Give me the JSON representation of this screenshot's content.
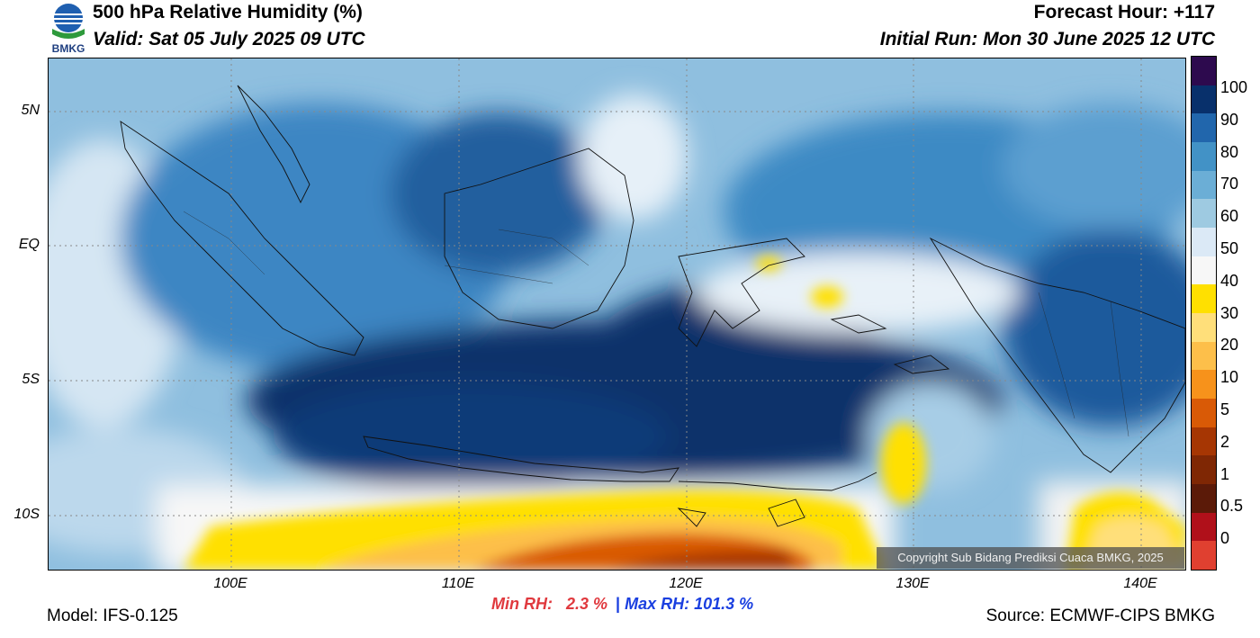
{
  "header": {
    "title": "500 hPa Relative Humidity (%)",
    "valid": "Valid: Sat 05 July 2025 09 UTC",
    "forecast_hour": "Forecast Hour: +117",
    "initial_run": "Initial Run: Mon 30 June 2025 12 UTC",
    "logo_text": "BMKG"
  },
  "map": {
    "lat_ticks": [
      "5N",
      "EQ",
      "5S",
      "10S"
    ],
    "lon_ticks": [
      "100E",
      "110E",
      "120E",
      "130E",
      "140E"
    ],
    "copyright": "Copyright Sub Bidang Prediksi Cuaca BMKG, 2025"
  },
  "colorbar": {
    "labels": [
      "100",
      "90",
      "80",
      "70",
      "60",
      "50",
      "40",
      "30",
      "20",
      "10",
      "5",
      "2",
      "1",
      "0.5",
      "0"
    ],
    "colors": [
      "#2d0a4e",
      "#08306b",
      "#2166ac",
      "#4292c6",
      "#6baed6",
      "#9ecae1",
      "#dbe9f6",
      "#f7f7f7",
      "#ffe000",
      "#ffdf7a",
      "#fdbf4a",
      "#f7921b",
      "#d95a06",
      "#a63603",
      "#7f2704",
      "#5b1a08",
      "#b0101a",
      "#e04030"
    ]
  },
  "stats": {
    "min_label": "Min RH:",
    "min_value": "2.3 %",
    "separator": "|",
    "max_label": "Max RH:",
    "max_value": "101.3 %"
  },
  "footer": {
    "model": "Model: IFS-0.125",
    "source": "Source: ECMWF-CIPS BMKG"
  }
}
